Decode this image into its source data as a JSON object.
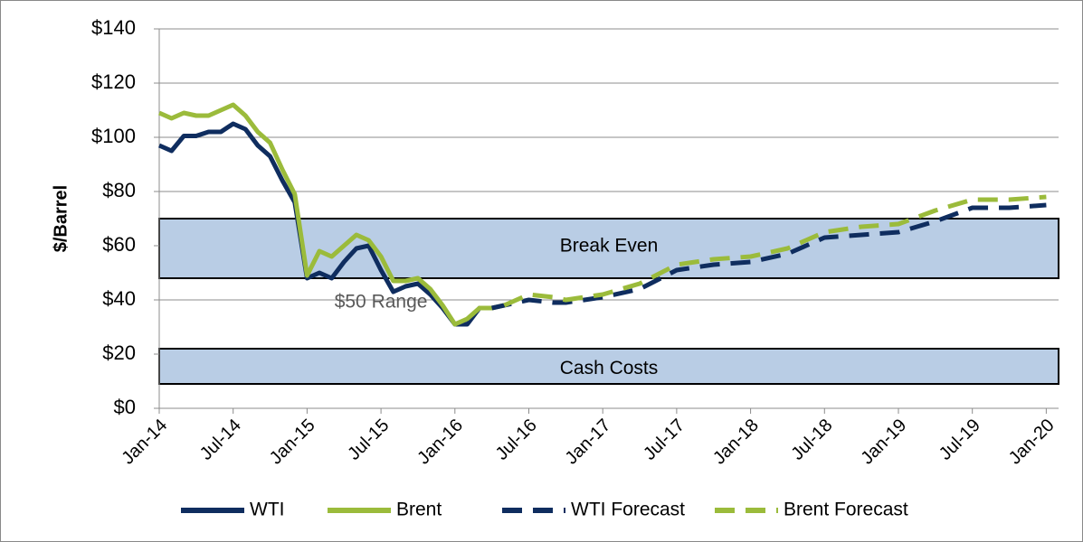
{
  "chart_data": {
    "type": "line",
    "ylabel": "$/Barrel",
    "xlim": [
      "2014-01",
      "2020-02"
    ],
    "xticks": [
      {
        "value": "2014-01",
        "label": "Jan-14"
      },
      {
        "value": "2014-07",
        "label": "Jul-14"
      },
      {
        "value": "2015-01",
        "label": "Jan-15"
      },
      {
        "value": "2015-07",
        "label": "Jul-15"
      },
      {
        "value": "2016-01",
        "label": "Jan-16"
      },
      {
        "value": "2016-07",
        "label": "Jul-16"
      },
      {
        "value": "2017-01",
        "label": "Jan-17"
      },
      {
        "value": "2017-07",
        "label": "Jul-17"
      },
      {
        "value": "2018-01",
        "label": "Jan-18"
      },
      {
        "value": "2018-07",
        "label": "Jul-18"
      },
      {
        "value": "2019-01",
        "label": "Jan-19"
      },
      {
        "value": "2019-07",
        "label": "Jul-19"
      },
      {
        "value": "2020-01",
        "label": "Jan-20"
      }
    ],
    "ylim": [
      0,
      140
    ],
    "yticks": [
      {
        "value": 0,
        "label": "$0"
      },
      {
        "value": 20,
        "label": "$20"
      },
      {
        "value": 40,
        "label": "$40"
      },
      {
        "value": 60,
        "label": "$60"
      },
      {
        "value": 80,
        "label": "$80"
      },
      {
        "value": 100,
        "label": "$100"
      },
      {
        "value": 120,
        "label": "$120"
      },
      {
        "value": 140,
        "label": "$140"
      }
    ],
    "grid": true,
    "legend": "bottom",
    "bands": [
      {
        "label": "Break Even",
        "from": 48,
        "to": 70,
        "color": "#b9cde5"
      },
      {
        "label": "Cash Costs",
        "from": 9,
        "to": 22,
        "color": "#b9cde5"
      }
    ],
    "annotations": [
      {
        "text": "$50 Range",
        "x": "2015-07",
        "y": 39
      }
    ],
    "series": [
      {
        "name": "WTI",
        "color": "#0f2d5f",
        "dashed": false,
        "x": [
          "2014-01",
          "2014-02",
          "2014-03",
          "2014-04",
          "2014-05",
          "2014-06",
          "2014-07",
          "2014-08",
          "2014-09",
          "2014-10",
          "2014-11",
          "2014-12",
          "2015-01",
          "2015-02",
          "2015-03",
          "2015-04",
          "2015-05",
          "2015-06",
          "2015-07",
          "2015-08",
          "2015-09",
          "2015-10",
          "2015-11",
          "2015-12",
          "2016-01",
          "2016-02",
          "2016-03",
          "2016-04"
        ],
        "values": [
          97,
          95,
          100.5,
          100.5,
          102,
          102,
          105,
          103,
          97,
          93,
          84,
          76,
          48,
          50,
          48,
          54,
          59,
          60,
          51,
          43,
          45,
          46,
          42,
          37,
          31,
          31,
          37,
          37
        ]
      },
      {
        "name": "Brent",
        "color": "#9bbb3b",
        "dashed": false,
        "x": [
          "2014-01",
          "2014-02",
          "2014-03",
          "2014-04",
          "2014-05",
          "2014-06",
          "2014-07",
          "2014-08",
          "2014-09",
          "2014-10",
          "2014-11",
          "2014-12",
          "2015-01",
          "2015-02",
          "2015-03",
          "2015-04",
          "2015-05",
          "2015-06",
          "2015-07",
          "2015-08",
          "2015-09",
          "2015-10",
          "2015-11",
          "2015-12",
          "2016-01",
          "2016-02",
          "2016-03",
          "2016-04",
          "2016-05"
        ],
        "values": [
          109,
          107,
          109,
          108,
          108,
          110,
          112,
          108,
          102,
          98,
          88,
          79,
          49,
          58,
          56,
          60,
          64,
          62,
          56,
          47,
          47,
          48,
          44,
          38,
          31,
          33,
          37,
          37,
          38
        ]
      },
      {
        "name": "WTI Forecast",
        "color": "#0f2d5f",
        "dashed": true,
        "x": [
          "2016-04",
          "2016-07",
          "2016-09",
          "2016-10",
          "2017-01",
          "2017-04",
          "2017-07",
          "2017-10",
          "2018-01",
          "2018-04",
          "2018-07",
          "2018-10",
          "2019-01",
          "2019-04",
          "2019-07",
          "2019-10",
          "2020-01"
        ],
        "values": [
          37,
          40,
          39,
          39,
          41,
          44,
          51,
          53,
          54,
          57,
          63,
          64,
          65,
          69,
          74,
          74,
          75
        ]
      },
      {
        "name": "Brent Forecast",
        "color": "#9bbb3b",
        "dashed": true,
        "x": [
          "2016-05",
          "2016-07",
          "2016-09",
          "2016-10",
          "2017-01",
          "2017-04",
          "2017-07",
          "2017-10",
          "2018-01",
          "2018-04",
          "2018-07",
          "2018-10",
          "2019-01",
          "2019-04",
          "2019-07",
          "2019-10",
          "2020-01"
        ],
        "values": [
          38,
          42,
          41,
          40,
          42,
          46,
          53,
          55,
          56,
          59,
          65,
          67,
          68,
          73,
          77,
          77,
          78
        ]
      }
    ]
  }
}
